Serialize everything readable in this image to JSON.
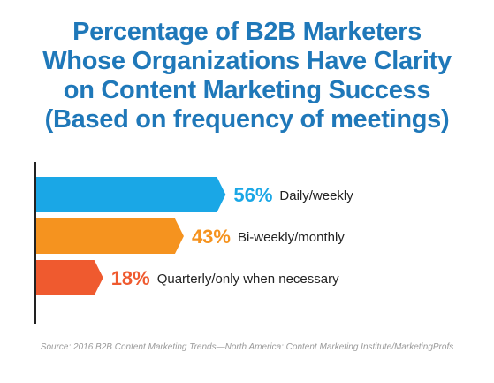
{
  "title_lines": [
    "Percentage of B2B Marketers",
    "Whose Organizations Have Clarity",
    "on Content Marketing Success",
    "(Based on frequency of meetings)"
  ],
  "source": "Source: 2016 B2B Content Marketing Trends—North America: Content Marketing Institute/MarketingProfs",
  "chart_data": {
    "type": "bar",
    "orientation": "horizontal",
    "title": "Percentage of B2B Marketers Whose Organizations Have Clarity on Content Marketing Success (Based on frequency of meetings)",
    "categories": [
      "Daily/weekly",
      "Bi-weekly/monthly",
      "Quarterly/only when necessary"
    ],
    "values": [
      56,
      43,
      18
    ],
    "value_labels": [
      "56%",
      "43%",
      "18%"
    ],
    "colors": [
      "#1aa7e6",
      "#f5931f",
      "#ef5a2f"
    ],
    "xlabel": "",
    "ylabel": "",
    "xlim": [
      0,
      100
    ],
    "grid": false,
    "legend": "none"
  }
}
